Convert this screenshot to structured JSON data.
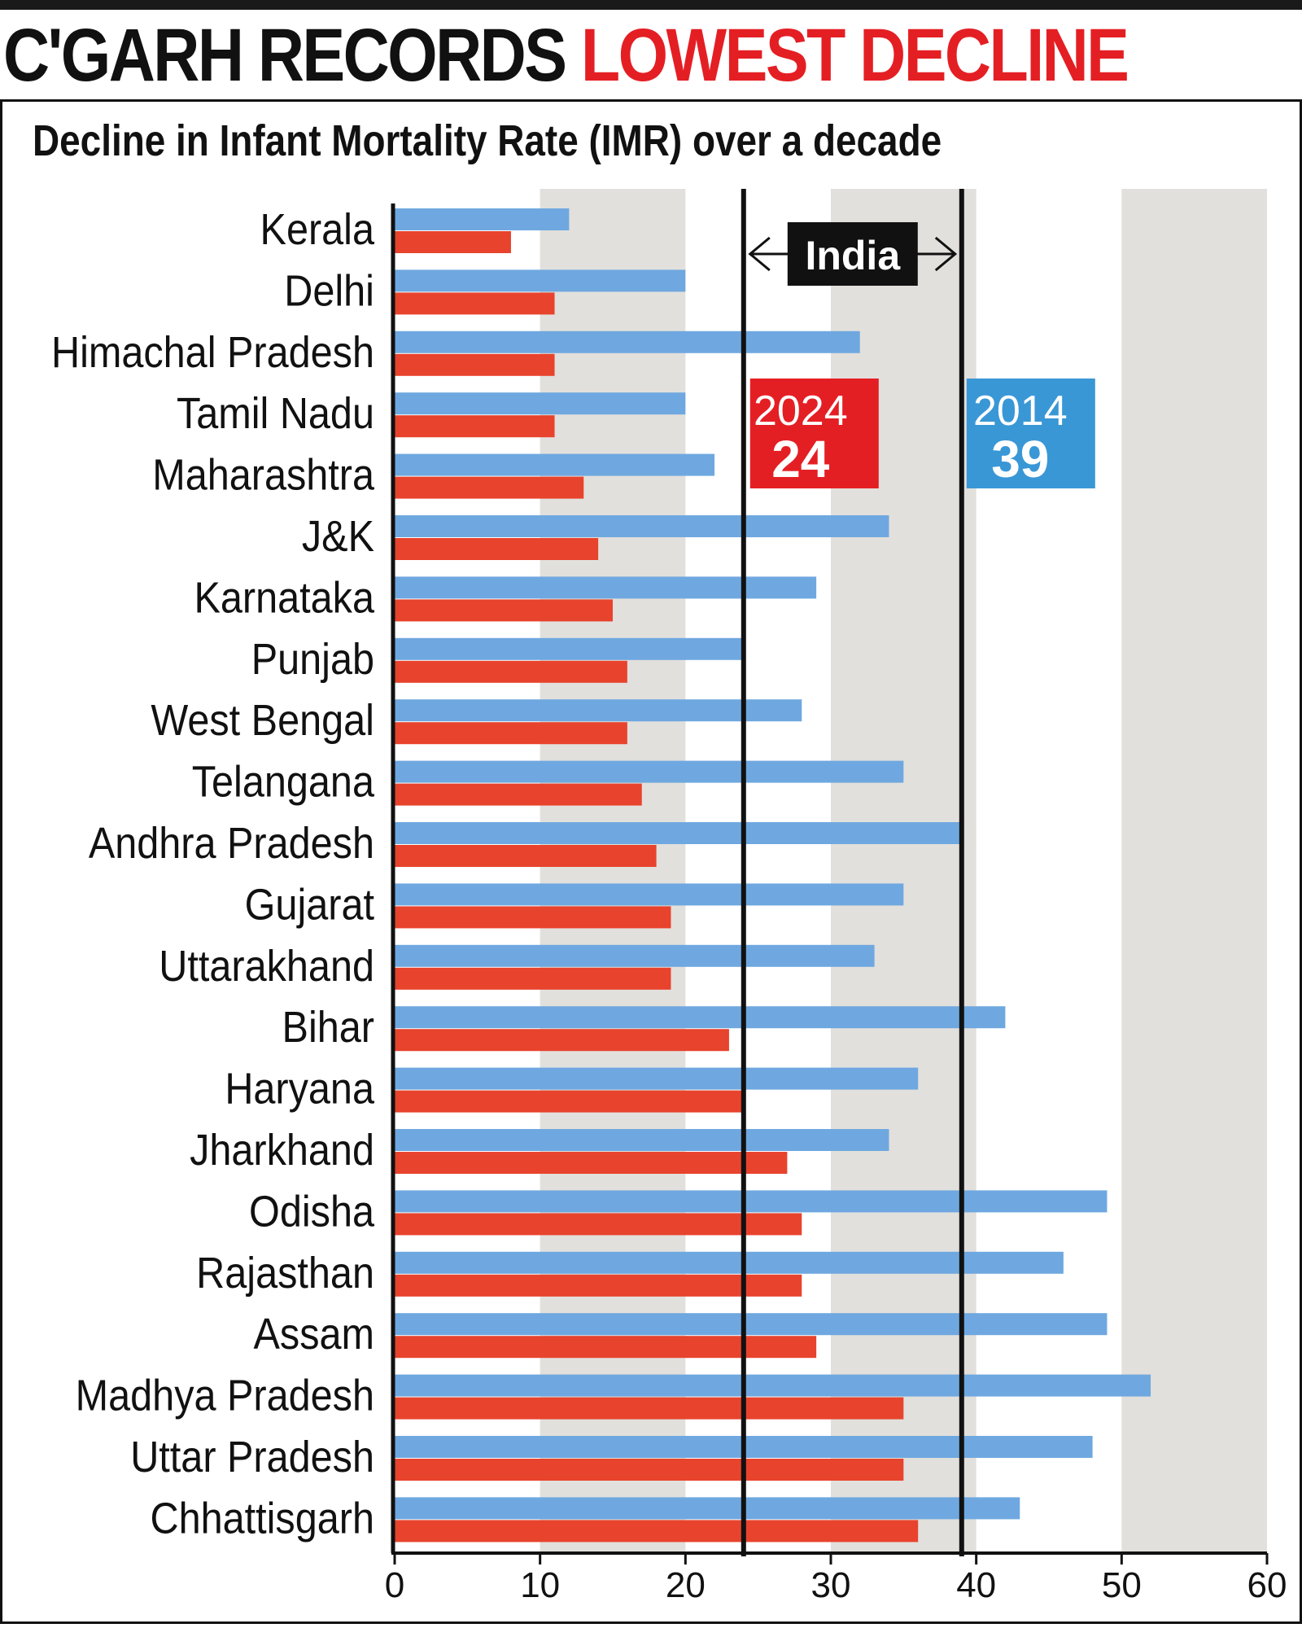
{
  "headline": {
    "part1": "C'GARH RECORDS",
    "part2": "LOWEST DECLINE"
  },
  "colors": {
    "series_2014": "#6fa8e0",
    "series_2024": "#e8432d",
    "band": "#e2e0dc",
    "box_2024": "#e41f24",
    "box_2014": "#3a97d6",
    "headline_accent": "#e41f24"
  },
  "chart_data": {
    "type": "bar",
    "orientation": "horizontal",
    "title": "Decline in Infant Mortality Rate (IMR) over a decade",
    "categories": [
      "Kerala",
      "Delhi",
      "Himachal Pradesh",
      "Tamil Nadu",
      "Maharashtra",
      "J&K",
      "Karnataka",
      "Punjab",
      "West Bengal",
      "Telangana",
      "Andhra Pradesh",
      "Gujarat",
      "Uttarakhand",
      "Bihar",
      "Haryana",
      "Jharkhand",
      "Odisha",
      "Rajasthan",
      "Assam",
      "Madhya Pradesh",
      "Uttar Pradesh",
      "Chhattisgarh"
    ],
    "series": [
      {
        "values": [
          12,
          20,
          32,
          20,
          22,
          34,
          29,
          24,
          28,
          35,
          39,
          35,
          33,
          42,
          36,
          34,
          49,
          46,
          49,
          52,
          48,
          43
        ]
      },
      {
        "values": [
          8,
          11,
          11,
          11,
          13,
          14,
          15,
          16,
          16,
          17,
          18,
          19,
          19,
          23,
          24,
          27,
          28,
          28,
          29,
          35,
          35,
          36
        ]
      }
    ],
    "xlim": [
      0,
      60
    ],
    "x_ticks": [
      0,
      10,
      20,
      30,
      40,
      50,
      60
    ],
    "reference_lines": [
      {
        "value": 24,
        "year": "2024",
        "label": "24"
      },
      {
        "value": 39,
        "year": "2014",
        "label": "39"
      }
    ],
    "reference_label": "India"
  }
}
